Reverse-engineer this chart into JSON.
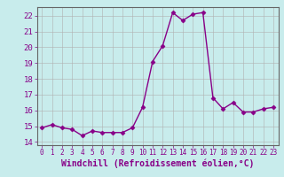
{
  "x": [
    0,
    1,
    2,
    3,
    4,
    5,
    6,
    7,
    8,
    9,
    10,
    11,
    12,
    13,
    14,
    15,
    16,
    17,
    18,
    19,
    20,
    21,
    22,
    23
  ],
  "y": [
    14.9,
    15.1,
    14.9,
    14.8,
    14.4,
    14.7,
    14.6,
    14.6,
    14.6,
    14.9,
    16.2,
    19.1,
    20.1,
    22.2,
    21.7,
    22.1,
    22.2,
    16.8,
    16.1,
    16.5,
    15.9,
    15.9,
    16.1,
    16.2
  ],
  "line_color": "#880088",
  "marker": "D",
  "markersize": 2.5,
  "linewidth": 1.0,
  "bg_color": "#c8ecec",
  "grid_color": "#b0b0b0",
  "xlabel": "Windchill (Refroidissement éolien,°C)",
  "xlabel_fontsize": 7,
  "tick_fontsize": 6.5,
  "xlim": [
    -0.5,
    23.5
  ],
  "ylim": [
    13.8,
    22.55
  ],
  "yticks": [
    14,
    15,
    16,
    17,
    18,
    19,
    20,
    21,
    22
  ],
  "xticks": [
    0,
    1,
    2,
    3,
    4,
    5,
    6,
    7,
    8,
    9,
    10,
    11,
    12,
    13,
    14,
    15,
    16,
    17,
    18,
    19,
    20,
    21,
    22,
    23
  ]
}
